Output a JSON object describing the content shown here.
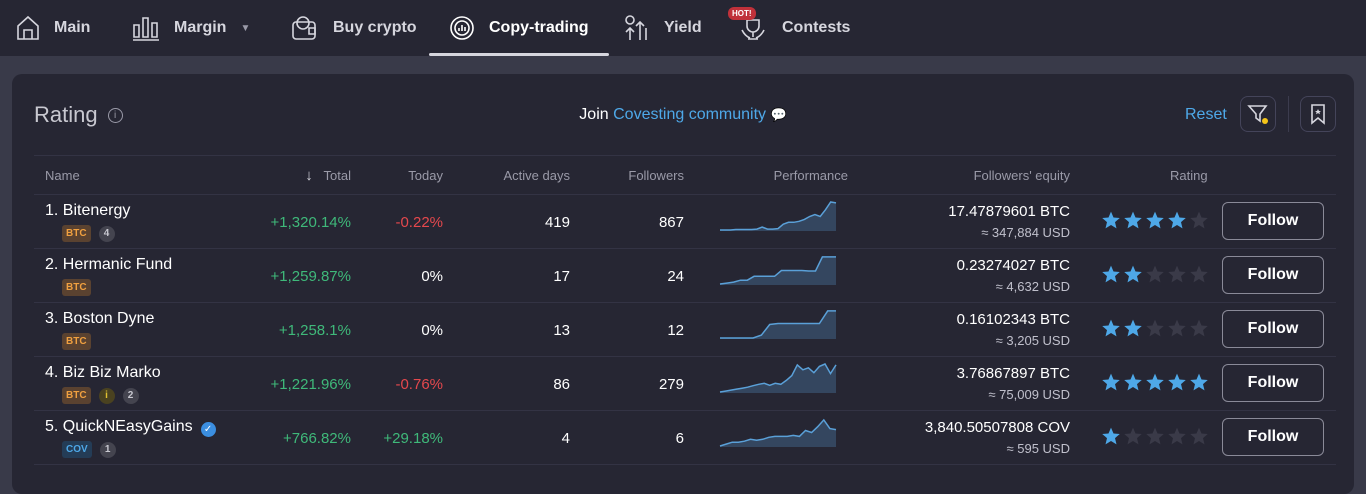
{
  "nav": [
    {
      "label": "Main",
      "icon": "home-icon"
    },
    {
      "label": "Margin",
      "icon": "bar-chart-icon"
    },
    {
      "label": "Buy crypto",
      "icon": "wallet-icon"
    },
    {
      "label": "Copy-trading",
      "icon": "copy-trading-icon",
      "active": true
    },
    {
      "label": "Yield",
      "icon": "yield-icon"
    },
    {
      "label": "Contests",
      "icon": "trophy-icon",
      "badge": "HOT!"
    }
  ],
  "panel": {
    "title": "Rating",
    "join_prefix": "Join",
    "join_link": "Covesting community",
    "reset": "Reset"
  },
  "columns": [
    "Name",
    "Total",
    "Today",
    "Active days",
    "Followers",
    "Performance",
    "Followers' equity",
    "Rating"
  ],
  "sort_indicator": "↓",
  "follow_label": "Follow",
  "colors": {
    "accent": "#4ea8e8",
    "positive": "#3fb97a",
    "negative": "#e5484d",
    "star": "#4ea8e8"
  },
  "rows": [
    {
      "rank": "1.",
      "name": "Bitenergy",
      "currency": "BTC",
      "badges": [
        "4"
      ],
      "total": "+1,320.14%",
      "today": "-0.22%",
      "today_sign": "neg",
      "active_days": "419",
      "followers": "867",
      "equity": "17.47879601 BTC",
      "equity_usd": "≈ 347,884 USD",
      "rating": 4,
      "perf": [
        2,
        2,
        2,
        3,
        3,
        3,
        3,
        4,
        8,
        4,
        4,
        5,
        14,
        18,
        18,
        20,
        24,
        30,
        34,
        30,
        44,
        60,
        58
      ]
    },
    {
      "rank": "2.",
      "name": "Hermanic Fund",
      "currency": "BTC",
      "badges": [],
      "total": "+1,259.87%",
      "today": "0%",
      "today_sign": "zero",
      "active_days": "17",
      "followers": "24",
      "equity": "0.23274027 BTC",
      "equity_usd": "≈ 4,632 USD",
      "rating": 2,
      "perf": [
        2,
        4,
        6,
        10,
        10,
        18,
        18,
        18,
        18,
        30,
        30,
        30,
        30,
        29,
        29,
        58,
        58,
        58
      ]
    },
    {
      "rank": "3.",
      "name": "Boston Dyne",
      "currency": "BTC",
      "badges": [],
      "total": "+1,258.1%",
      "today": "0%",
      "today_sign": "zero",
      "active_days": "13",
      "followers": "12",
      "equity": "0.16102343 BTC",
      "equity_usd": "≈ 3,205 USD",
      "rating": 2,
      "perf": [
        2,
        2,
        2,
        2,
        2,
        8,
        30,
        32,
        32,
        32,
        32,
        32,
        32,
        58,
        58
      ]
    },
    {
      "rank": "4.",
      "name": "Biz Biz Marko",
      "currency": "BTC",
      "badges": [
        "i",
        "2"
      ],
      "total": "+1,221.96%",
      "today": "-0.76%",
      "today_sign": "neg",
      "active_days": "86",
      "followers": "279",
      "equity": "3.76867897 BTC",
      "equity_usd": "≈ 75,009 USD",
      "rating": 5,
      "perf": [
        2,
        4,
        6,
        8,
        10,
        12,
        15,
        18,
        20,
        16,
        20,
        18,
        26,
        36,
        58,
        48,
        52,
        42,
        55,
        60,
        40,
        58
      ]
    },
    {
      "rank": "5.",
      "name": "QuickNEasyGains",
      "verified": true,
      "currency": "COV",
      "badges": [
        "1"
      ],
      "total": "+766.82%",
      "today": "+29.18%",
      "today_sign": "pos",
      "active_days": "4",
      "followers": "6",
      "equity": "3,840.50507808 COV",
      "equity_usd": "≈ 595 USD",
      "rating": 1,
      "perf": [
        2,
        6,
        10,
        10,
        12,
        16,
        14,
        16,
        20,
        22,
        22,
        22,
        24,
        22,
        34,
        30,
        42,
        56,
        38,
        36
      ]
    }
  ]
}
